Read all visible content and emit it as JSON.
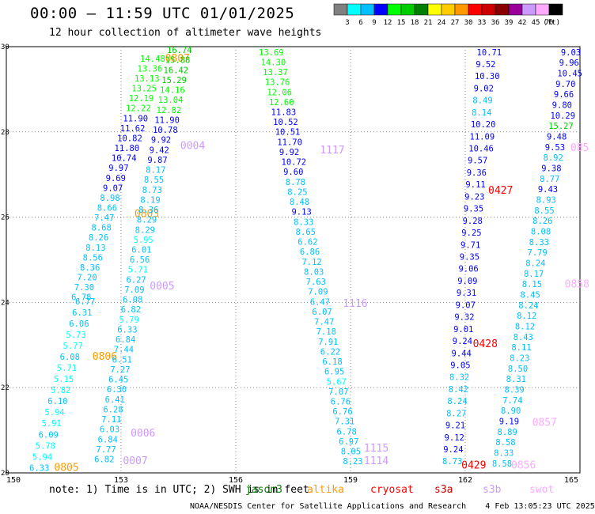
{
  "header": {
    "title": "00:00 – 11:59 UTC 01/01/2025",
    "subtitle": "12 hour collection of altimeter wave heights"
  },
  "colorbar": {
    "unit": "(ft)",
    "bins": [
      {
        "label": "3",
        "color": "#808080"
      },
      {
        "label": "6",
        "color": "#00ffff"
      },
      {
        "label": "9",
        "color": "#00bfff"
      },
      {
        "label": "12",
        "color": "#0000ff"
      },
      {
        "label": "15",
        "color": "#00ff00"
      },
      {
        "label": "18",
        "color": "#00cc00"
      },
      {
        "label": "21",
        "color": "#008000"
      },
      {
        "label": "24",
        "color": "#ffff00"
      },
      {
        "label": "27",
        "color": "#ffcc00"
      },
      {
        "label": "30",
        "color": "#ff9900"
      },
      {
        "label": "33",
        "color": "#ff0000"
      },
      {
        "label": "36",
        "color": "#cc0000"
      },
      {
        "label": "39",
        "color": "#880000"
      },
      {
        "label": "42",
        "color": "#990099"
      },
      {
        "label": "45",
        "color": "#cc99ff"
      },
      {
        "label": "70",
        "color": "#ffaaff"
      },
      {
        "label": "",
        "color": "#000000"
      }
    ]
  },
  "notes": {
    "note": "note: 1) Time is in UTC; 2) SWH is in feet",
    "satellites": [
      {
        "name": "jason3",
        "color": "#008000"
      },
      {
        "name": "altika",
        "color": "#ff9900"
      },
      {
        "name": "cryosat",
        "color": "#ff0000"
      },
      {
        "name": "s3a",
        "color": "#cc0000"
      },
      {
        "name": "s3b",
        "color": "#cc99ff"
      },
      {
        "name": "swot",
        "color": "#ffaaff"
      }
    ]
  },
  "footer": "NOAA/NESDIS Center for Satellite Applications and Research    4 Feb 13:05:23 UTC 2025",
  "chart_data": {
    "type": "scatter",
    "xlim": [
      150,
      165
    ],
    "ylim": [
      20,
      30
    ],
    "x_ticks": [
      "150",
      "153",
      "156",
      "159",
      "162",
      "165"
    ],
    "y_ticks": [
      "20",
      "22",
      "24",
      "26",
      "28",
      "30"
    ],
    "grid": true,
    "tracks": [
      {
        "time": "0805",
        "lon": 151.25,
        "lat": 20.05,
        "color": "#ff9900",
        "values": [
          6.33,
          5.94,
          5.78,
          6.09,
          5.91,
          5.94,
          6.1,
          5.82,
          5.15,
          5.71,
          6.08,
          5.77,
          5.73,
          6.06,
          6.31,
          6.77
        ],
        "lon_start": 150.6,
        "lon_end": 151.8,
        "lat_start": 20.05,
        "lat_end": 23.95
      },
      {
        "time": "0806",
        "lon": 152.25,
        "lat": 22.65,
        "color": "#ff9900",
        "values": [
          6.78,
          7.3,
          7.2,
          8.36,
          8.56,
          8.13,
          8.26,
          8.68,
          7.47,
          8.66,
          8.98,
          9.07,
          9.69,
          9.97,
          10.74,
          11.8,
          10.82,
          11.62,
          11.9,
          12.22,
          12.19,
          13.25,
          13.13,
          13.36,
          14.48
        ],
        "lon_start": 151.7,
        "lon_end": 153.5,
        "lat_start": 24.05,
        "lat_end": 29.65
      },
      {
        "time": "0807",
        "lon": 154.15,
        "lat": 29.65,
        "color": "#ff9900",
        "values": [],
        "lon_start": 154.0,
        "lon_end": 154.0,
        "lat_start": 29.65,
        "lat_end": 29.65
      },
      {
        "time": "0803",
        "lon": 153.35,
        "lat": 26.0,
        "color": "#ff9900",
        "values": [],
        "lon_start": 153.0,
        "lon_end": 153.0,
        "lat_start": 26.0,
        "lat_end": 26.0
      },
      {
        "time": "0006",
        "lon": 153.25,
        "lat": 20.85,
        "color": "#cc99ff",
        "values": [
          6.82,
          7.77,
          6.84,
          6.03,
          7.11,
          6.28,
          6.41,
          6.3,
          6.45,
          7.27,
          6.51,
          7.44,
          6.84,
          6.33,
          5.79,
          6.82,
          6.08,
          7.09,
          6.27,
          5.71,
          6.56,
          6.01,
          5.95,
          8.29,
          8.29,
          8.36,
          8.19,
          8.73,
          8.55,
          8.17,
          9.87,
          9.42,
          9.92,
          10.78,
          11.9,
          12.82,
          13.04,
          14.16,
          15.29,
          16.42,
          15.88,
          16.74
        ],
        "lon_start": 152.3,
        "lon_end": 154.2,
        "lat_start": 20.25,
        "lat_end": 29.85
      },
      {
        "time": "0007",
        "lon": 153.05,
        "lat": 20.2,
        "color": "#cc99ff",
        "values": [],
        "lon_start": 153.0,
        "lon_end": 153.0,
        "lat_start": 20.2,
        "lat_end": 20.2
      },
      {
        "time": "0005",
        "lon": 153.75,
        "lat": 24.3,
        "color": "#cc99ff",
        "values": [],
        "lon_start": 153.0,
        "lon_end": 153.0,
        "lat_start": 24.3,
        "lat_end": 24.3
      },
      {
        "time": "0004",
        "lon": 154.55,
        "lat": 27.6,
        "color": "#cc99ff",
        "values": [],
        "lon_start": 154.0,
        "lon_end": 154.0,
        "lat_start": 27.6,
        "lat_end": 27.6
      },
      {
        "time": "1117",
        "lon": 158.2,
        "lat": 27.5,
        "color": "#cc99ff",
        "values": [
          13.69,
          14.3,
          13.37,
          13.76,
          12.06,
          12.6,
          11.83,
          10.52,
          10.51,
          11.7,
          9.92,
          10.72,
          9.6,
          8.78,
          8.25,
          8.48,
          9.13,
          8.33,
          8.65,
          6.62,
          6.86,
          7.12,
          8.03,
          7.63,
          7.09,
          6.47,
          6.07,
          7.47,
          7.18,
          7.91,
          6.22,
          6.18,
          6.95,
          5.67,
          7.07,
          6.76,
          6.76,
          7.31,
          6.78,
          6.97,
          8.05,
          8.23
        ],
        "lon_start": 156.6,
        "lon_end": 158.8,
        "lat_start": 29.8,
        "lat_end": 20.2
      },
      {
        "time": "1116",
        "lon": 158.8,
        "lat": 23.9,
        "color": "#cc99ff",
        "values": [],
        "lon_start": 158.8,
        "lon_end": 158.8,
        "lat_start": 23.9,
        "lat_end": 23.9
      },
      {
        "time": "1115",
        "lon": 159.35,
        "lat": 20.5,
        "color": "#cc99ff",
        "values": [],
        "lon_start": 159.3,
        "lon_end": 159.3,
        "lat_start": 20.5,
        "lat_end": 20.5
      },
      {
        "time": "1114",
        "lon": 159.35,
        "lat": 20.2,
        "color": "#cc99ff",
        "values": [],
        "lon_start": 159.3,
        "lon_end": 159.3,
        "lat_start": 20.2,
        "lat_end": 20.2
      },
      {
        "time": "0427",
        "lon": 162.6,
        "lat": 26.55,
        "color": "#ff0000",
        "values": [
          10.71,
          9.52,
          10.3,
          9.02,
          8.49,
          8.14,
          10.2,
          11.09,
          10.46,
          9.57,
          9.36,
          9.11,
          9.23,
          9.35,
          9.28,
          9.25,
          9.71,
          9.35,
          9.06,
          9.09,
          9.31,
          9.07,
          9.32,
          9.01,
          9.24,
          9.44,
          9.05,
          8.32,
          8.42,
          8.24,
          8.27,
          9.21,
          9.12,
          9.24,
          8.73
        ],
        "lon_start": 162.3,
        "lon_end": 161.4,
        "lat_start": 29.8,
        "lat_end": 20.2
      },
      {
        "time": "0428",
        "lon": 162.2,
        "lat": 22.95,
        "color": "#ff0000",
        "values": [],
        "lon_start": 162.2,
        "lon_end": 162.2,
        "lat_start": 22.95,
        "lat_end": 22.95
      },
      {
        "time": "0429",
        "lon": 161.9,
        "lat": 20.1,
        "color": "#ff0000",
        "values": [],
        "lon_start": 161.9,
        "lon_end": 161.9,
        "lat_start": 20.1,
        "lat_end": 20.1
      },
      {
        "time": "0858",
        "lon": 164.6,
        "lat": 24.35,
        "color": "#ffaaff",
        "values": [
          9.03,
          9.96,
          10.45,
          9.7,
          9.66,
          9.8,
          10.29,
          15.27,
          9.48,
          9.53,
          8.92,
          9.38,
          8.77,
          9.43,
          8.93,
          8.55,
          8.26,
          8.08,
          8.33,
          7.79,
          8.24,
          8.17,
          8.15,
          8.45,
          8.24,
          8.12,
          8.12,
          8.43,
          8.11,
          8.23,
          8.5,
          8.31,
          8.39,
          7.74,
          8.9,
          9.19,
          8.89,
          8.58,
          8.33,
          8.58
        ],
        "lon_start": 164.5,
        "lon_end": 162.7,
        "lat_start": 29.8,
        "lat_end": 20.15
      },
      {
        "time": "0857",
        "lon": 163.75,
        "lat": 21.1,
        "color": "#ffaaff",
        "values": [],
        "lon_start": 163.7,
        "lon_end": 163.7,
        "lat_start": 21.1,
        "lat_end": 21.1
      },
      {
        "time": "0856",
        "lon": 163.2,
        "lat": 20.1,
        "color": "#ffaaff",
        "values": [],
        "lon_start": 163.2,
        "lon_end": 163.2,
        "lat_start": 20.1,
        "lat_end": 20.1
      },
      {
        "time": "085",
        "lon": 164.75,
        "lat": 27.55,
        "color": "#ffaaff",
        "values": [],
        "lon_start": 164.7,
        "lon_end": 164.7,
        "lat_start": 27.55,
        "lat_end": 27.55
      }
    ]
  }
}
